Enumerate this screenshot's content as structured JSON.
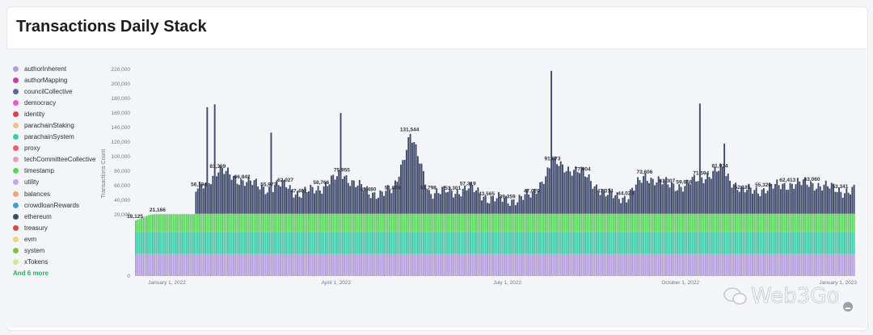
{
  "title": "Transactions Daily Stack",
  "legend": {
    "items": [
      {
        "label": "authorInherent",
        "color": "#b39ddb"
      },
      {
        "label": "authorMapping",
        "color": "#c2409e"
      },
      {
        "label": "councilCollective",
        "color": "#5c6a8f"
      },
      {
        "label": "democracy",
        "color": "#e85bd6"
      },
      {
        "label": "identity",
        "color": "#d9434f"
      },
      {
        "label": "parachainStaking",
        "color": "#e9c38a"
      },
      {
        "label": "parachainSystem",
        "color": "#43c9a7"
      },
      {
        "label": "proxy",
        "color": "#ea5f68"
      },
      {
        "label": "techCommitteeCollective",
        "color": "#e7a0c0"
      },
      {
        "label": "timestamp",
        "color": "#5fd35f"
      },
      {
        "label": "utility",
        "color": "#c9a4e8"
      },
      {
        "label": "balances",
        "color": "#f2a477"
      },
      {
        "label": "crowdloanRewards",
        "color": "#3ca3c7"
      },
      {
        "label": "ethereum",
        "color": "#3f4a6b"
      },
      {
        "label": "treasury",
        "color": "#d94b4b"
      },
      {
        "label": "evm",
        "color": "#f4d27a"
      },
      {
        "label": "system",
        "color": "#7cc243"
      },
      {
        "label": "xTokens",
        "color": "#c9ef8a"
      }
    ],
    "more": "And 6 more"
  },
  "watermark": "Web3Go",
  "chart_data": {
    "type": "bar",
    "ylabel": "Transactions Count",
    "ylim": [
      0,
      220000
    ],
    "yticks": [
      "0",
      "20,000",
      "40,000",
      "60,000",
      "80,000",
      "100,000",
      "120,000",
      "140,000",
      "160,000",
      "180,000",
      "200,000",
      "220,000"
    ],
    "xticks": [
      "January 1, 2022",
      "April 1, 2022",
      "July 1, 2022",
      "October 1, 2022",
      "January 1, 2023"
    ],
    "x_range": [
      "2021-12-15",
      "2023-01-01"
    ],
    "grid": false,
    "legend_position": "left",
    "series": [
      {
        "name": "authorInherent",
        "color": "#b39ddb",
        "typical_value": 7200
      },
      {
        "name": "parachainSystem",
        "color": "#43c9a7",
        "typical_value": 7200
      },
      {
        "name": "timestamp",
        "color": "#5fd35f",
        "typical_value": 7200
      },
      {
        "name": "ethereum",
        "color": "#3f4a6b",
        "note": "remaining volume above stacked base"
      }
    ],
    "total_data_labels": [
      {
        "date": "2021-12-15",
        "value": 18125,
        "label": "18,125"
      },
      {
        "date": "2021-12-27",
        "value": 21166,
        "label": "21,166"
      },
      {
        "date": "2022-01-18",
        "value": 56194,
        "label": "56,194"
      },
      {
        "date": "2022-01-28",
        "value": 81359,
        "label": "81,359"
      },
      {
        "date": "2022-02-10",
        "value": 66842,
        "label": "66,842"
      },
      {
        "date": "2022-02-24",
        "value": 55973,
        "label": "55,973"
      },
      {
        "date": "2022-03-05",
        "value": 62027,
        "label": "62,027"
      },
      {
        "date": "2022-03-12",
        "value": 47462,
        "label": "47,462"
      },
      {
        "date": "2022-03-24",
        "value": 58766,
        "label": "58,766"
      },
      {
        "date": "2022-04-04",
        "value": 75955,
        "label": "75,955"
      },
      {
        "date": "2022-04-18",
        "value": 49480,
        "label": "49,480"
      },
      {
        "date": "2022-05-01",
        "value": 51895,
        "label": "51,895"
      },
      {
        "date": "2022-05-10",
        "value": 131544,
        "label": "131,544"
      },
      {
        "date": "2022-05-20",
        "value": 51798,
        "label": "51,798"
      },
      {
        "date": "2022-06-02",
        "value": 51301,
        "label": "51,301"
      },
      {
        "date": "2022-06-10",
        "value": 57319,
        "label": "57,319"
      },
      {
        "date": "2022-06-20",
        "value": 43565,
        "label": "43,565"
      },
      {
        "date": "2022-07-01",
        "value": 39359,
        "label": "39,359"
      },
      {
        "date": "2022-07-14",
        "value": 47029,
        "label": "47,029"
      },
      {
        "date": "2022-07-25",
        "value": 91673,
        "label": "91,673"
      },
      {
        "date": "2022-08-10",
        "value": 77004,
        "label": "77,004"
      },
      {
        "date": "2022-08-22",
        "value": 47314,
        "label": "47,314"
      },
      {
        "date": "2022-09-02",
        "value": 44023,
        "label": "44,023"
      },
      {
        "date": "2022-09-12",
        "value": 73606,
        "label": "73,606"
      },
      {
        "date": "2022-09-24",
        "value": 61307,
        "label": "61,307"
      },
      {
        "date": "2022-10-03",
        "value": 59666,
        "label": "59,666"
      },
      {
        "date": "2022-10-12",
        "value": 71594,
        "label": "71,594"
      },
      {
        "date": "2022-10-22",
        "value": 81924,
        "label": "81,924"
      },
      {
        "date": "2022-11-03",
        "value": 52185,
        "label": "52,185"
      },
      {
        "date": "2022-11-14",
        "value": 55326,
        "label": "55,326"
      },
      {
        "date": "2022-11-27",
        "value": 62413,
        "label": "62,413"
      },
      {
        "date": "2022-12-10",
        "value": 63060,
        "label": "63,060"
      },
      {
        "date": "2022-12-25",
        "value": 53341,
        "label": "53,341"
      }
    ],
    "spikes": [
      {
        "date": "2022-01-22",
        "value": 168000
      },
      {
        "date": "2022-01-26",
        "value": 172000
      },
      {
        "date": "2022-02-25",
        "value": 133000
      },
      {
        "date": "2022-04-03",
        "value": 160000
      },
      {
        "date": "2022-07-24",
        "value": 218000
      },
      {
        "date": "2022-10-11",
        "value": 173000
      },
      {
        "date": "2022-10-24",
        "value": 118000
      }
    ]
  }
}
